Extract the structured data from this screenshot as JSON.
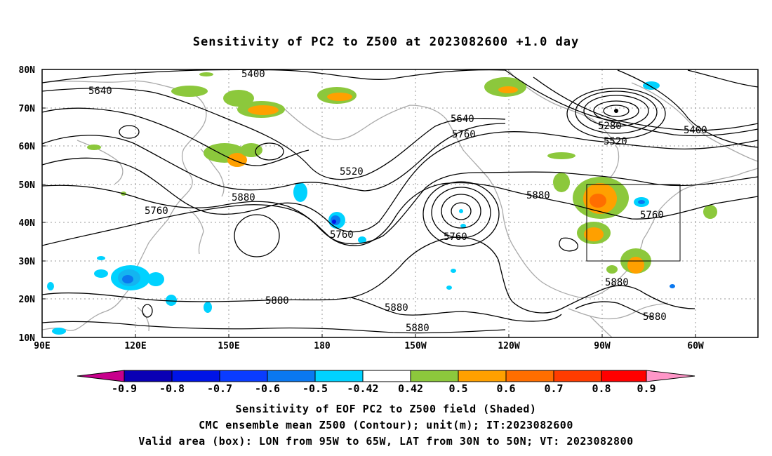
{
  "title": "Sensitivity of PC2 to Z500 at 2023082600 +1.0 day",
  "axes": {
    "lat_labels": [
      "80N",
      "70N",
      "60N",
      "50N",
      "40N",
      "30N",
      "20N",
      "10N"
    ],
    "lon_labels": [
      "90E",
      "120E",
      "150E",
      "180",
      "150W",
      "120W",
      "90W",
      "60W"
    ]
  },
  "contour_labels": [
    "5400",
    "5640",
    "5280",
    "5400",
    "5520",
    "5640",
    "5760",
    "5520",
    "5760",
    "5880",
    "5880",
    "5760",
    "5760",
    "5880",
    "5760",
    "5880",
    "5880",
    "5880",
    "5880"
  ],
  "valid_box": {
    "lon": [
      "95W",
      "65W"
    ],
    "lat": [
      "30N",
      "50N"
    ]
  },
  "colorbar": {
    "labels": [
      "-0.9",
      "-0.8",
      "-0.7",
      "-0.6",
      "-0.5",
      "-0.42",
      "0.42",
      "0.5",
      "0.6",
      "0.7",
      "0.8",
      "0.9"
    ],
    "colors": [
      "#c8008c",
      "#0a00b4",
      "#0014e6",
      "#0a3cff",
      "#0a78f0",
      "#14b4f0",
      "#00d2ff",
      "#ffffff",
      "#8cc83c",
      "#ffa000",
      "#ff6e00",
      "#ff3c00",
      "#ff0000",
      "#ff96c8"
    ]
  },
  "captions": {
    "line1": "Sensitivity of EOF PC2 to Z500 field (Shaded)",
    "line2": "CMC ensemble mean Z500 (Contour); unit(m); IT:2023082600",
    "line3": "Valid area (box): LON from 95W to 65W, LAT from 30N to 50N; VT: 2023082800"
  }
}
